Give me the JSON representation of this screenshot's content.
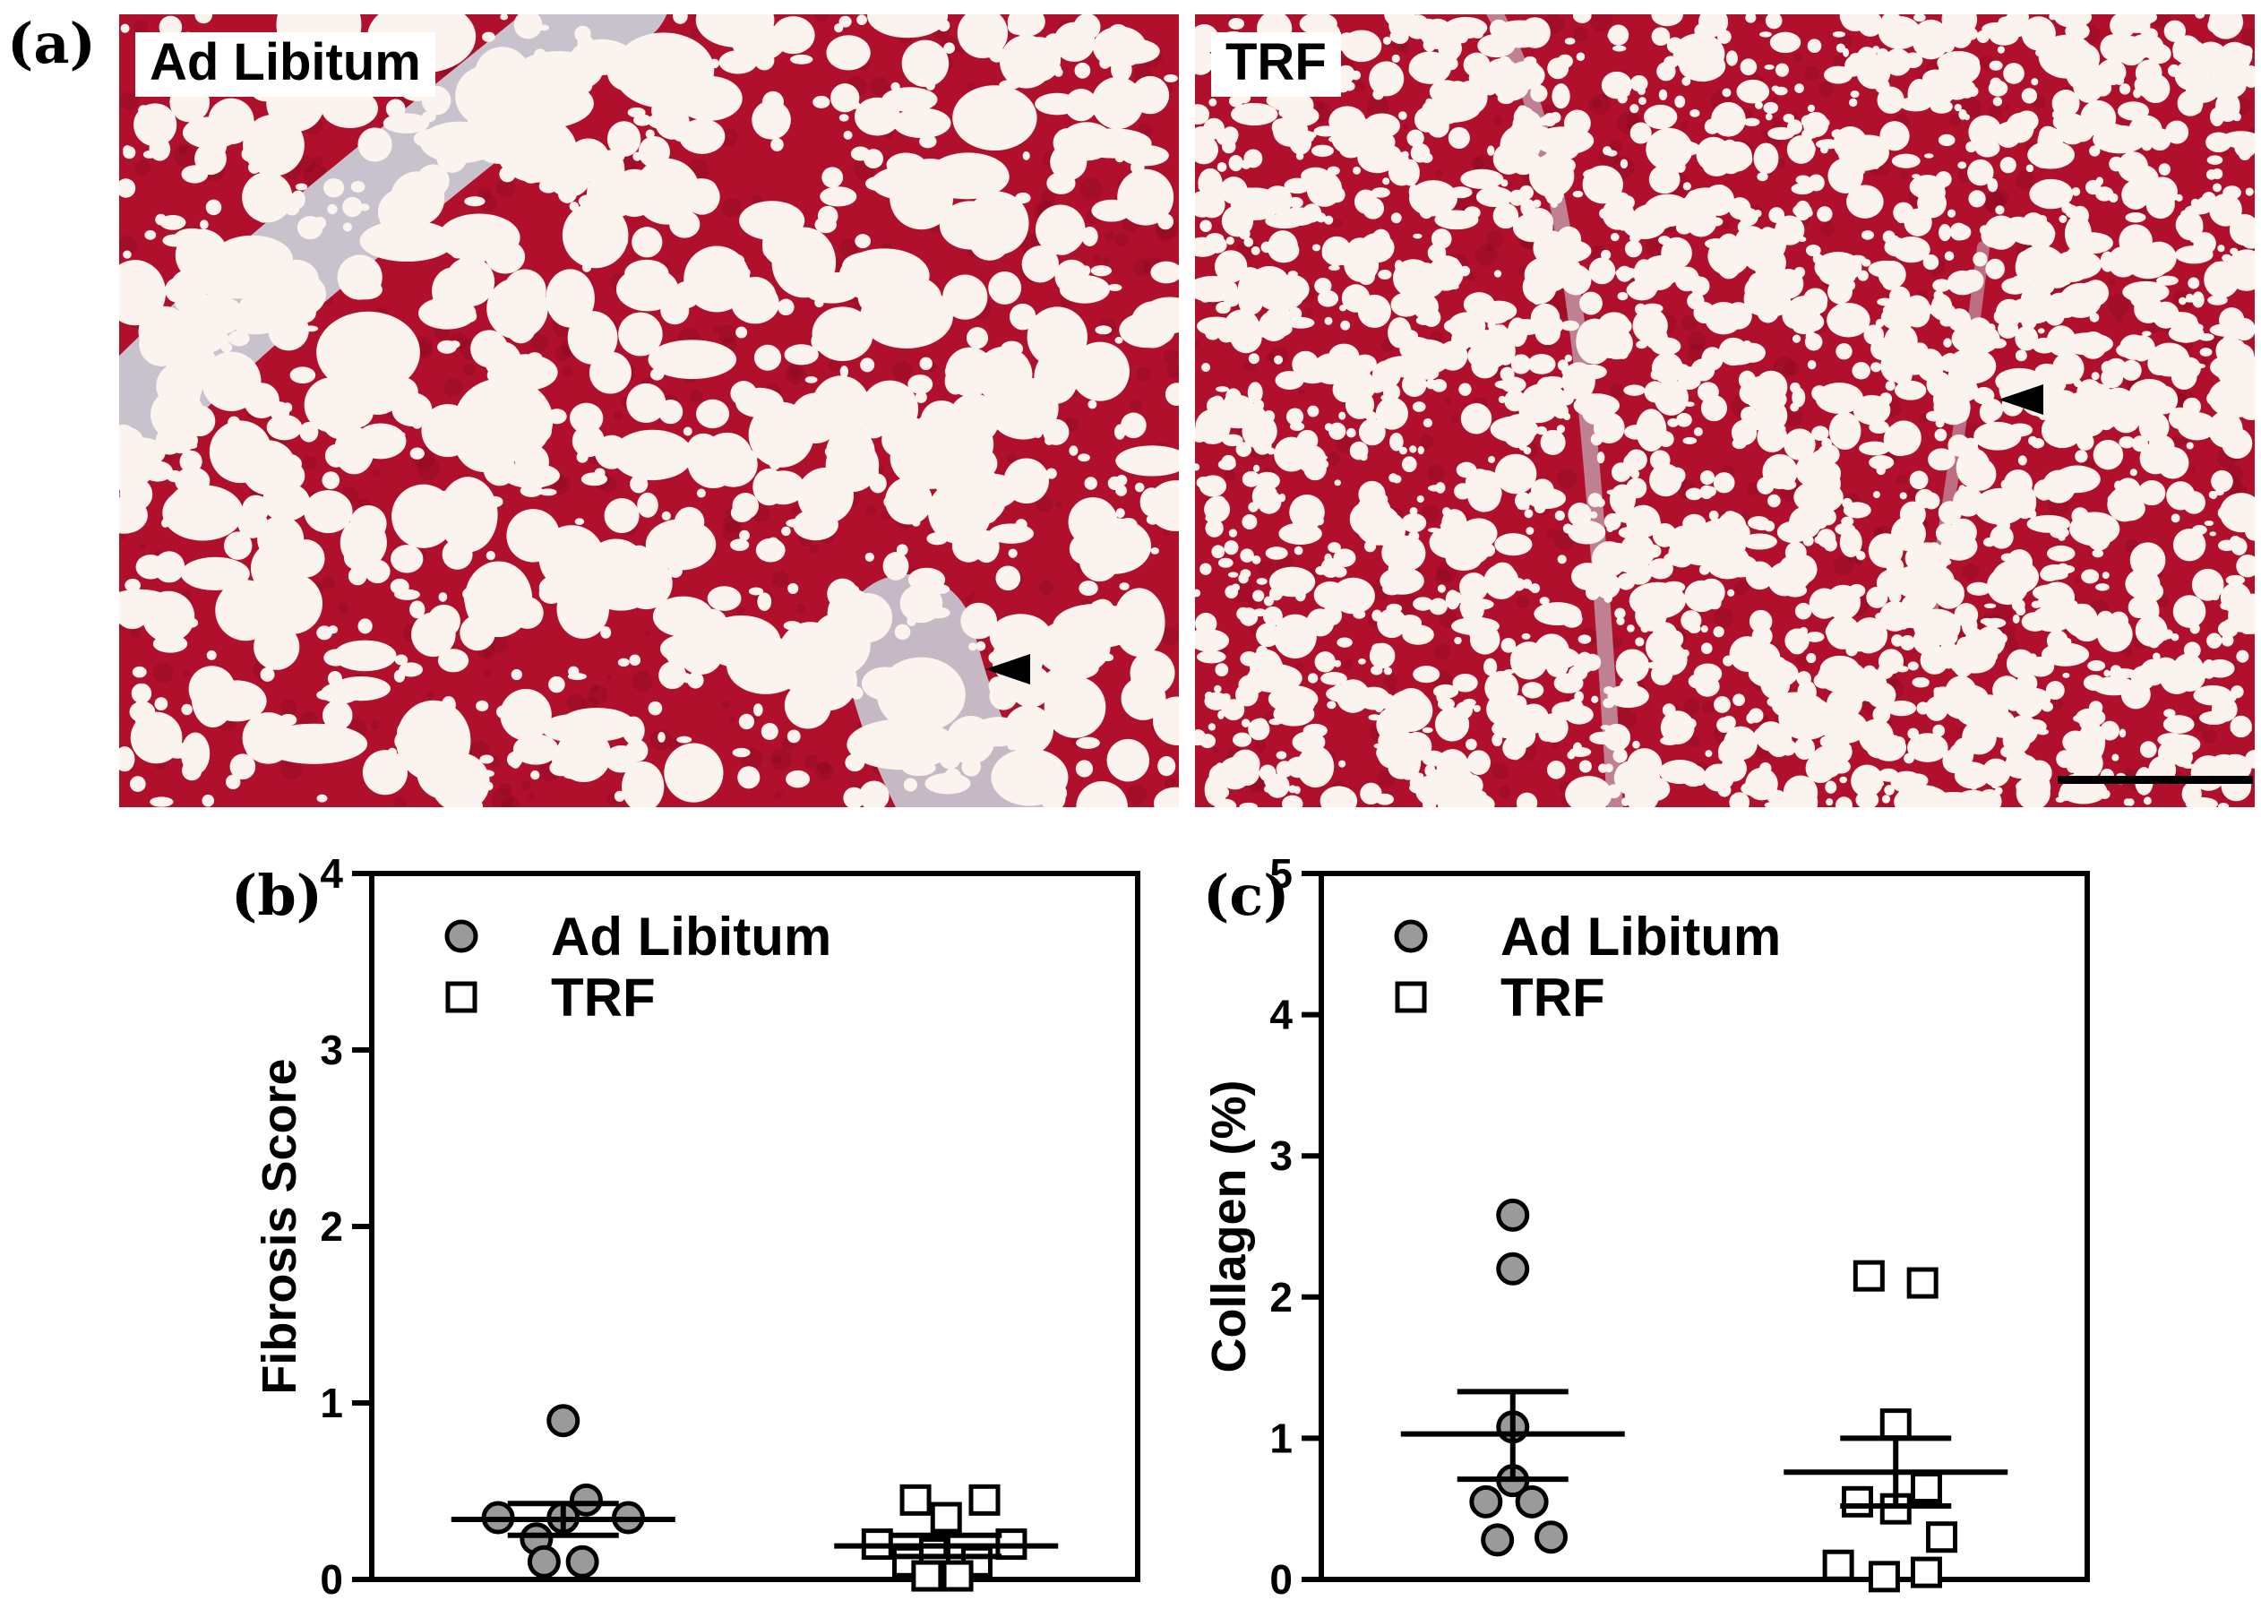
{
  "figure": {
    "panel_a": {
      "letter": "(a)",
      "left_label": "Ad Libitum",
      "right_label": "TRF"
    },
    "panel_b": {
      "letter": "(b)"
    },
    "panel_c": {
      "letter": "(c)"
    }
  },
  "colors": {
    "tissue_red": "#b0102c",
    "tissue_dark": "#8a0820",
    "lipid_white": "#fbf3ee",
    "vessel_gray": "#c9ccd6",
    "marker_fill": "#9a9a9a"
  },
  "chart_data": [
    {
      "id": "b",
      "type": "scatter",
      "title": "",
      "xlabel": "",
      "ylabel": "Fibrosis Score",
      "ylim": [
        0,
        4
      ],
      "yticks": [
        0,
        1,
        2,
        3,
        4
      ],
      "grid": false,
      "legend": {
        "position": "top-left",
        "entries": [
          "Ad Libitum",
          "TRF"
        ]
      },
      "series": [
        {
          "name": "Ad Libitum",
          "marker": "circle-filled",
          "group_x": 1,
          "points": [
            [
              0.83,
              0.35
            ],
            [
              0.93,
              0.23
            ],
            [
              1.0,
              0.35
            ],
            [
              1.06,
              0.45
            ],
            [
              1.17,
              0.35
            ],
            [
              0.95,
              0.1
            ],
            [
              1.05,
              0.1
            ],
            [
              1.0,
              0.9
            ]
          ],
          "mean": 0.34,
          "sem": [
            0.25,
            0.43
          ]
        },
        {
          "name": "TRF",
          "marker": "square-open",
          "group_x": 2,
          "points": [
            [
              1.82,
              0.2
            ],
            [
              1.9,
              0.1
            ],
            [
              1.97,
              0.15
            ],
            [
              2.08,
              0.1
            ],
            [
              2.17,
              0.2
            ],
            [
              1.92,
              0.45
            ],
            [
              2.0,
              0.35
            ],
            [
              2.1,
              0.45
            ],
            [
              1.95,
              0.02
            ],
            [
              2.03,
              0.02
            ]
          ],
          "mean": 0.19,
          "sem": [
            0.13,
            0.25
          ]
        }
      ]
    },
    {
      "id": "c",
      "type": "scatter",
      "title": "",
      "xlabel": "",
      "ylabel": "Collagen (%)",
      "ylim": [
        0,
        5
      ],
      "yticks": [
        0,
        1,
        2,
        3,
        4,
        5
      ],
      "grid": false,
      "legend": {
        "position": "top-left",
        "entries": [
          "Ad Libitum",
          "TRF"
        ]
      },
      "series": [
        {
          "name": "Ad Libitum",
          "marker": "circle-filled",
          "group_x": 1,
          "points": [
            [
              1.0,
              2.58
            ],
            [
              1.0,
              2.2
            ],
            [
              1.0,
              1.08
            ],
            [
              0.93,
              0.55
            ],
            [
              1.0,
              0.7
            ],
            [
              1.05,
              0.55
            ],
            [
              0.96,
              0.28
            ],
            [
              1.1,
              0.3
            ]
          ],
          "mean": 1.03,
          "sem": [
            0.71,
            1.33
          ]
        },
        {
          "name": "TRF",
          "marker": "square-open",
          "group_x": 2,
          "points": [
            [
              1.93,
              2.15
            ],
            [
              2.07,
              2.1
            ],
            [
              2.0,
              1.1
            ],
            [
              2.08,
              0.65
            ],
            [
              1.9,
              0.55
            ],
            [
              2.0,
              0.5
            ],
            [
              2.12,
              0.3
            ],
            [
              1.85,
              0.1
            ],
            [
              1.97,
              0.02
            ],
            [
              2.08,
              0.05
            ]
          ],
          "mean": 0.76,
          "sem": [
            0.52,
            1.0
          ]
        }
      ]
    }
  ]
}
